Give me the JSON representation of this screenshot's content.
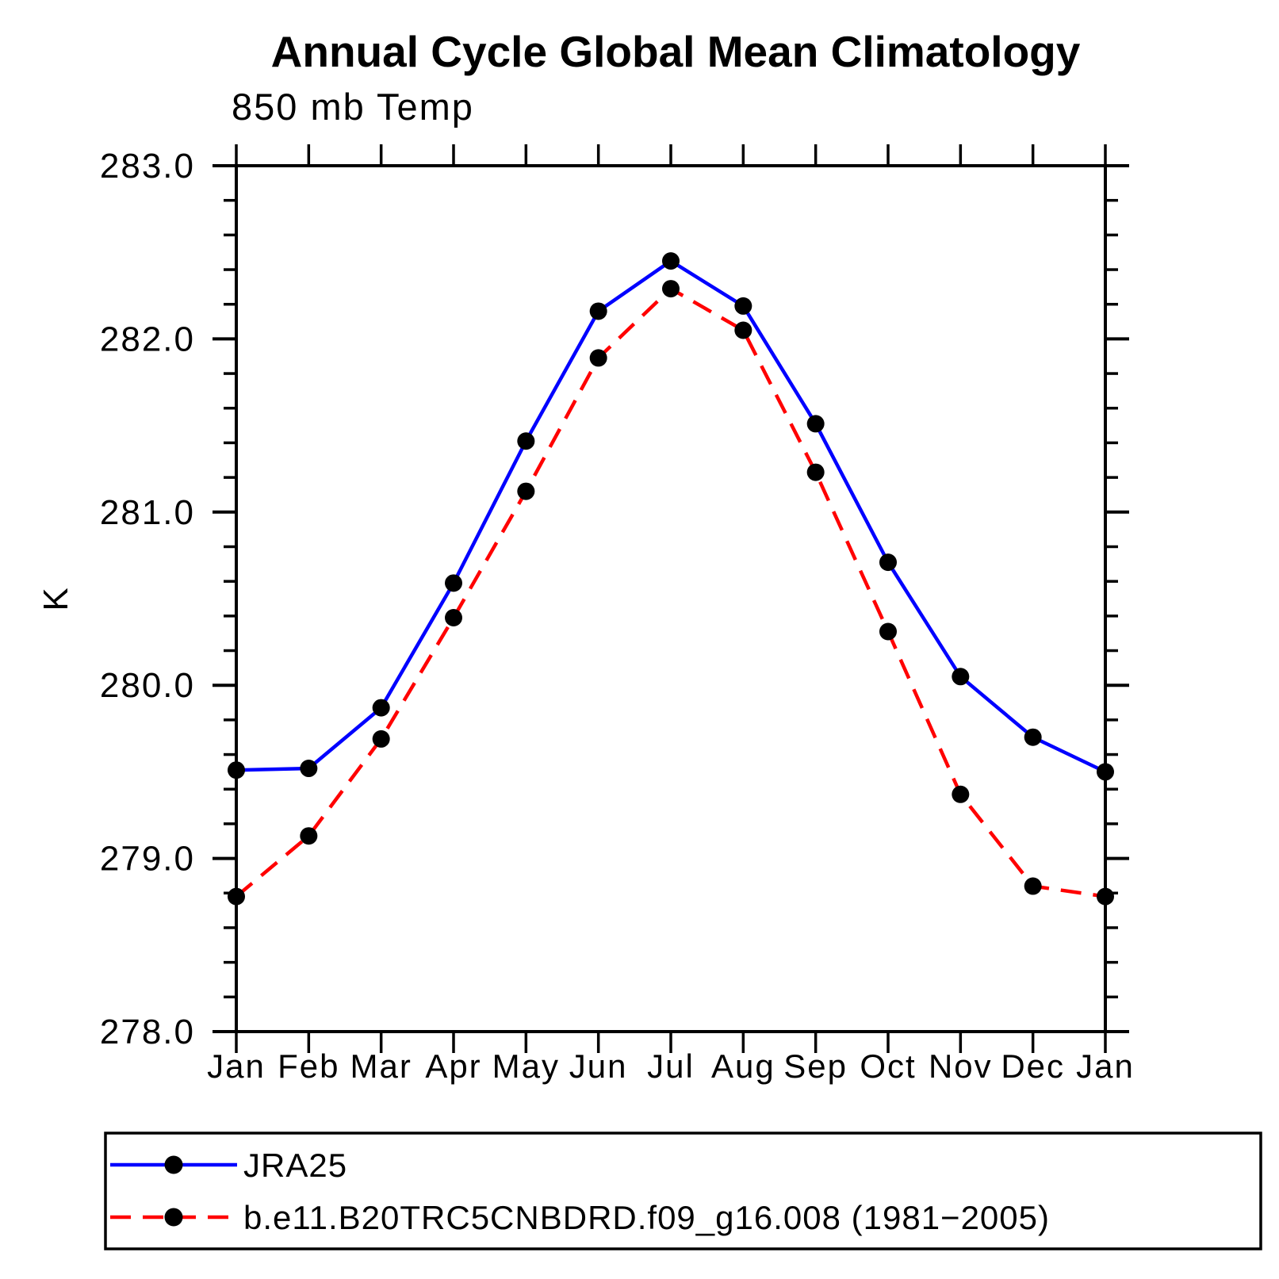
{
  "chart_data": {
    "type": "line",
    "title": "Annual Cycle Global Mean Climatology",
    "subtitle": "850 mb Temp",
    "ylabel": "K",
    "ylim": [
      278.0,
      283.0
    ],
    "ytick_interval_major": 1.0,
    "ytick_interval_minor": 0.2,
    "y_tick_labels": [
      "278.0",
      "279.0",
      "280.0",
      "281.0",
      "282.0",
      "283.0"
    ],
    "categories": [
      "Jan",
      "Feb",
      "Mar",
      "Apr",
      "May",
      "Jun",
      "Jul",
      "Aug",
      "Sep",
      "Oct",
      "Nov",
      "Dec",
      "Jan"
    ],
    "grid": false,
    "legend_position": "bottom-left",
    "marker": "filled-circle",
    "marker_color": "#000000",
    "frame_color": "#000000",
    "series": [
      {
        "name": "JRA25",
        "color": "#0000ff",
        "line_style": "solid",
        "values": [
          279.51,
          279.52,
          279.87,
          280.59,
          281.41,
          282.16,
          282.45,
          282.19,
          281.51,
          280.71,
          280.05,
          279.7,
          279.5
        ]
      },
      {
        "name": "b.e11.B20TRC5CNBDRD.f09_g16.008 (1981−2005)",
        "color": "#ff0000",
        "line_style": "dashed",
        "values": [
          278.78,
          279.13,
          279.69,
          280.39,
          281.12,
          281.89,
          282.29,
          282.05,
          281.23,
          280.31,
          279.37,
          278.84,
          278.78
        ]
      }
    ]
  }
}
